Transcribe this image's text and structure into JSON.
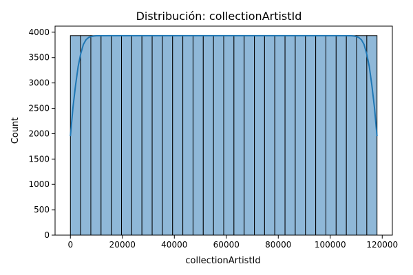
{
  "chart_data": {
    "type": "bar",
    "title": "Distribución: collectionArtistId",
    "xlabel": "collectionArtistId",
    "ylabel": "Count",
    "xlim": [
      -5900,
      123900
    ],
    "ylim": [
      0,
      4120
    ],
    "x_ticks": [
      0,
      20000,
      40000,
      60000,
      80000,
      100000,
      120000
    ],
    "y_ticks": [
      0,
      500,
      1000,
      1500,
      2000,
      2500,
      3000,
      3500,
      4000
    ],
    "bins": {
      "start": 0,
      "end": 118000,
      "count": 30,
      "values": [
        3933,
        3933,
        3933,
        3933,
        3933,
        3933,
        3933,
        3933,
        3933,
        3933,
        3933,
        3933,
        3933,
        3933,
        3933,
        3933,
        3933,
        3933,
        3933,
        3933,
        3933,
        3933,
        3933,
        3933,
        3933,
        3933,
        3933,
        3933,
        3933,
        3933
      ]
    },
    "kde": {
      "x": [
        0,
        1000,
        2000,
        3000,
        4000,
        5000,
        6000,
        7000,
        8000,
        9000,
        10000,
        15000,
        59000,
        103000,
        108000,
        109000,
        110000,
        111000,
        112000,
        113000,
        114000,
        115000,
        116000,
        117000,
        118000
      ],
      "y": [
        1950,
        2520,
        2960,
        3330,
        3580,
        3760,
        3850,
        3895,
        3915,
        3925,
        3930,
        3932,
        3932,
        3932,
        3930,
        3925,
        3915,
        3895,
        3850,
        3760,
        3580,
        3330,
        2960,
        2520,
        1950
      ]
    },
    "grid": false,
    "colors": {
      "bar_fill": "#8fb8d8",
      "bar_edge": "#000000",
      "kde_line": "#1f77b4"
    }
  }
}
